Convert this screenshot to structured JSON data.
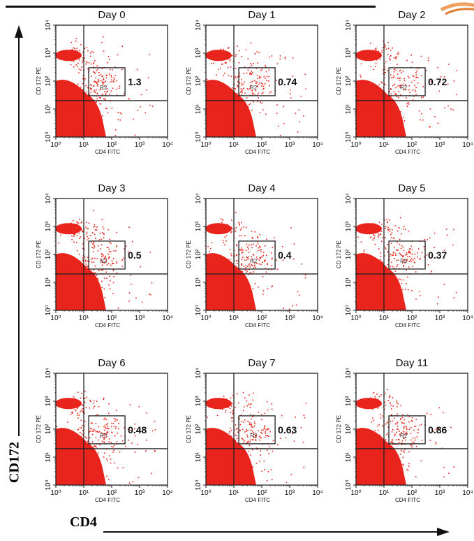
{
  "figure": {
    "y_title": "CD172",
    "x_title": "CD4"
  },
  "chart_data": {
    "type": "scatter",
    "x_axis": {
      "label": "CD4 FITC",
      "scale": "log",
      "range": [
        1,
        10000
      ],
      "ticks": [
        "10⁰",
        "10¹",
        "10²",
        "10³",
        "10⁴"
      ]
    },
    "y_axis": {
      "label": "CD 172 PE",
      "scale": "log",
      "range": [
        1,
        10000
      ],
      "ticks": [
        "10⁰",
        "10¹",
        "10²",
        "10³",
        "10⁴"
      ]
    },
    "gate": {
      "name": "R2",
      "x_range": [
        15,
        300
      ],
      "y_range": [
        30,
        300
      ]
    },
    "quadrant_lines": {
      "x": 10,
      "y": 20
    },
    "point_color": "#e8241c",
    "panels": [
      {
        "title": "Day 0",
        "r2_percent": "1.3"
      },
      {
        "title": "Day 1",
        "r2_percent": "0.74"
      },
      {
        "title": "Day 2",
        "r2_percent": "0.72"
      },
      {
        "title": "Day 3",
        "r2_percent": "0.5"
      },
      {
        "title": "Day 4",
        "r2_percent": "0.4"
      },
      {
        "title": "Day 5",
        "r2_percent": "0.37"
      },
      {
        "title": "Day 6",
        "r2_percent": "0.48"
      },
      {
        "title": "Day 7",
        "r2_percent": "0.63"
      },
      {
        "title": "Day 11",
        "r2_percent": "0.86"
      }
    ]
  }
}
